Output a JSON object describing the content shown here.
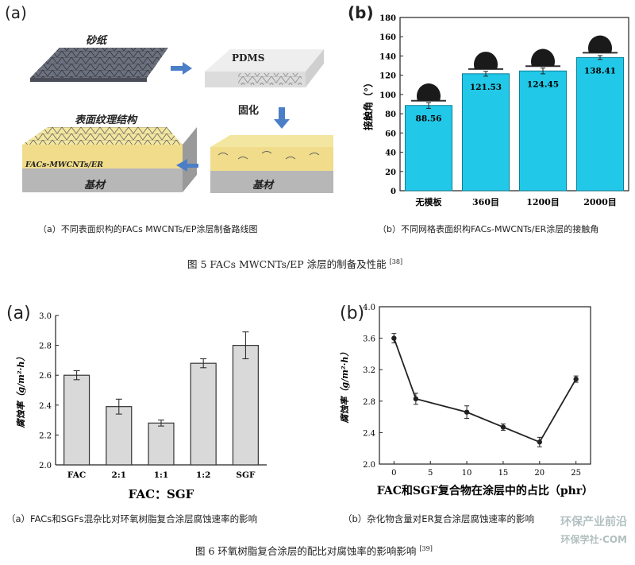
{
  "figure5": {
    "panel_a": {
      "letter": "(a)",
      "labels": {
        "sandpaper": "砂纸",
        "pdms": "PDMS",
        "cure": "固化",
        "texture": "表面纹理结构",
        "coating": "FACs-MWCNTs/ER",
        "substrate1": "基材",
        "substrate2": "基材"
      },
      "caption": "（a）不同表面织构的FACs MWCNTs/EP涂层制备路线图"
    },
    "panel_b": {
      "letter": "(b)",
      "caption": "（b）不同网格表面织构FACs-MWCNTs/ER涂层的接触角"
    },
    "caption": "图  5 FACs MWCNTs/EP 涂层的制备及性能",
    "ref": "[38]"
  },
  "figure6": {
    "panel_a": {
      "letter": "(a)",
      "caption": "（a）FACs和SGFs混杂比对环氧树脂复合涂层腐蚀速率的影响"
    },
    "panel_b": {
      "letter": "(b)",
      "caption": "（b）杂化物含量对ER复合涂层腐蚀速率的影响"
    },
    "caption": "图  6 环氧树脂复合涂层的配比对腐蚀率的影响影响",
    "ref": "[39]"
  },
  "watermark": {
    "line1": "环保产业前沿",
    "line2": "环保学社·COM"
  },
  "colors": {
    "cyan_bar": "#22c8e8",
    "gray_bar": "#d9d9d9",
    "line": "#222222",
    "coating": "#f3e6a0",
    "substrate": "#b7b7b7"
  },
  "chart_data": [
    {
      "id": "contact-angle",
      "type": "bar",
      "title": "",
      "xlabel": "",
      "ylabel": "接触角（°）",
      "categories": [
        "无模板",
        "360目",
        "1200目",
        "2000目"
      ],
      "values": [
        88.56,
        121.53,
        124.45,
        138.41
      ],
      "value_labels": [
        "88.56",
        "121.53",
        "124.45",
        "138.41"
      ],
      "errors": [
        3,
        2.5,
        3,
        2
      ],
      "ylim": [
        0,
        180
      ],
      "yticks": [
        0,
        20,
        40,
        60,
        80,
        100,
        120,
        140,
        160,
        180
      ],
      "grid": false
    },
    {
      "id": "fac-sgf-ratio",
      "type": "bar",
      "title": "",
      "xlabel": "FAC：SGF",
      "ylabel": "腐蚀率（g/m²·h）",
      "categories": [
        "FAC",
        "2:1",
        "1:1",
        "1:2",
        "SGF"
      ],
      "values": [
        2.6,
        2.39,
        2.28,
        2.68,
        2.8
      ],
      "errors": [
        0.03,
        0.05,
        0.02,
        0.03,
        0.09
      ],
      "ylim": [
        2.0,
        3.0
      ],
      "yticks": [
        2.0,
        2.2,
        2.4,
        2.6,
        2.8,
        3.0
      ],
      "grid": false
    },
    {
      "id": "hybrid-content",
      "type": "line",
      "title": "",
      "xlabel": "FAC和SGF复合物在涂层中的占比（phr）",
      "ylabel": "腐蚀率（g/m²·h）",
      "x": [
        0,
        3,
        10,
        15,
        20,
        25
      ],
      "y": [
        3.6,
        2.83,
        2.66,
        2.47,
        2.28,
        3.08
      ],
      "errors": [
        0.06,
        0.07,
        0.08,
        0.04,
        0.06,
        0.04
      ],
      "xlim": [
        -2,
        27
      ],
      "xticks": [
        0,
        5,
        10,
        15,
        20,
        25
      ],
      "ylim": [
        2.0,
        4.0
      ],
      "yticks": [
        2.0,
        2.4,
        2.8,
        3.2,
        3.6,
        4.0
      ],
      "grid": false
    }
  ]
}
